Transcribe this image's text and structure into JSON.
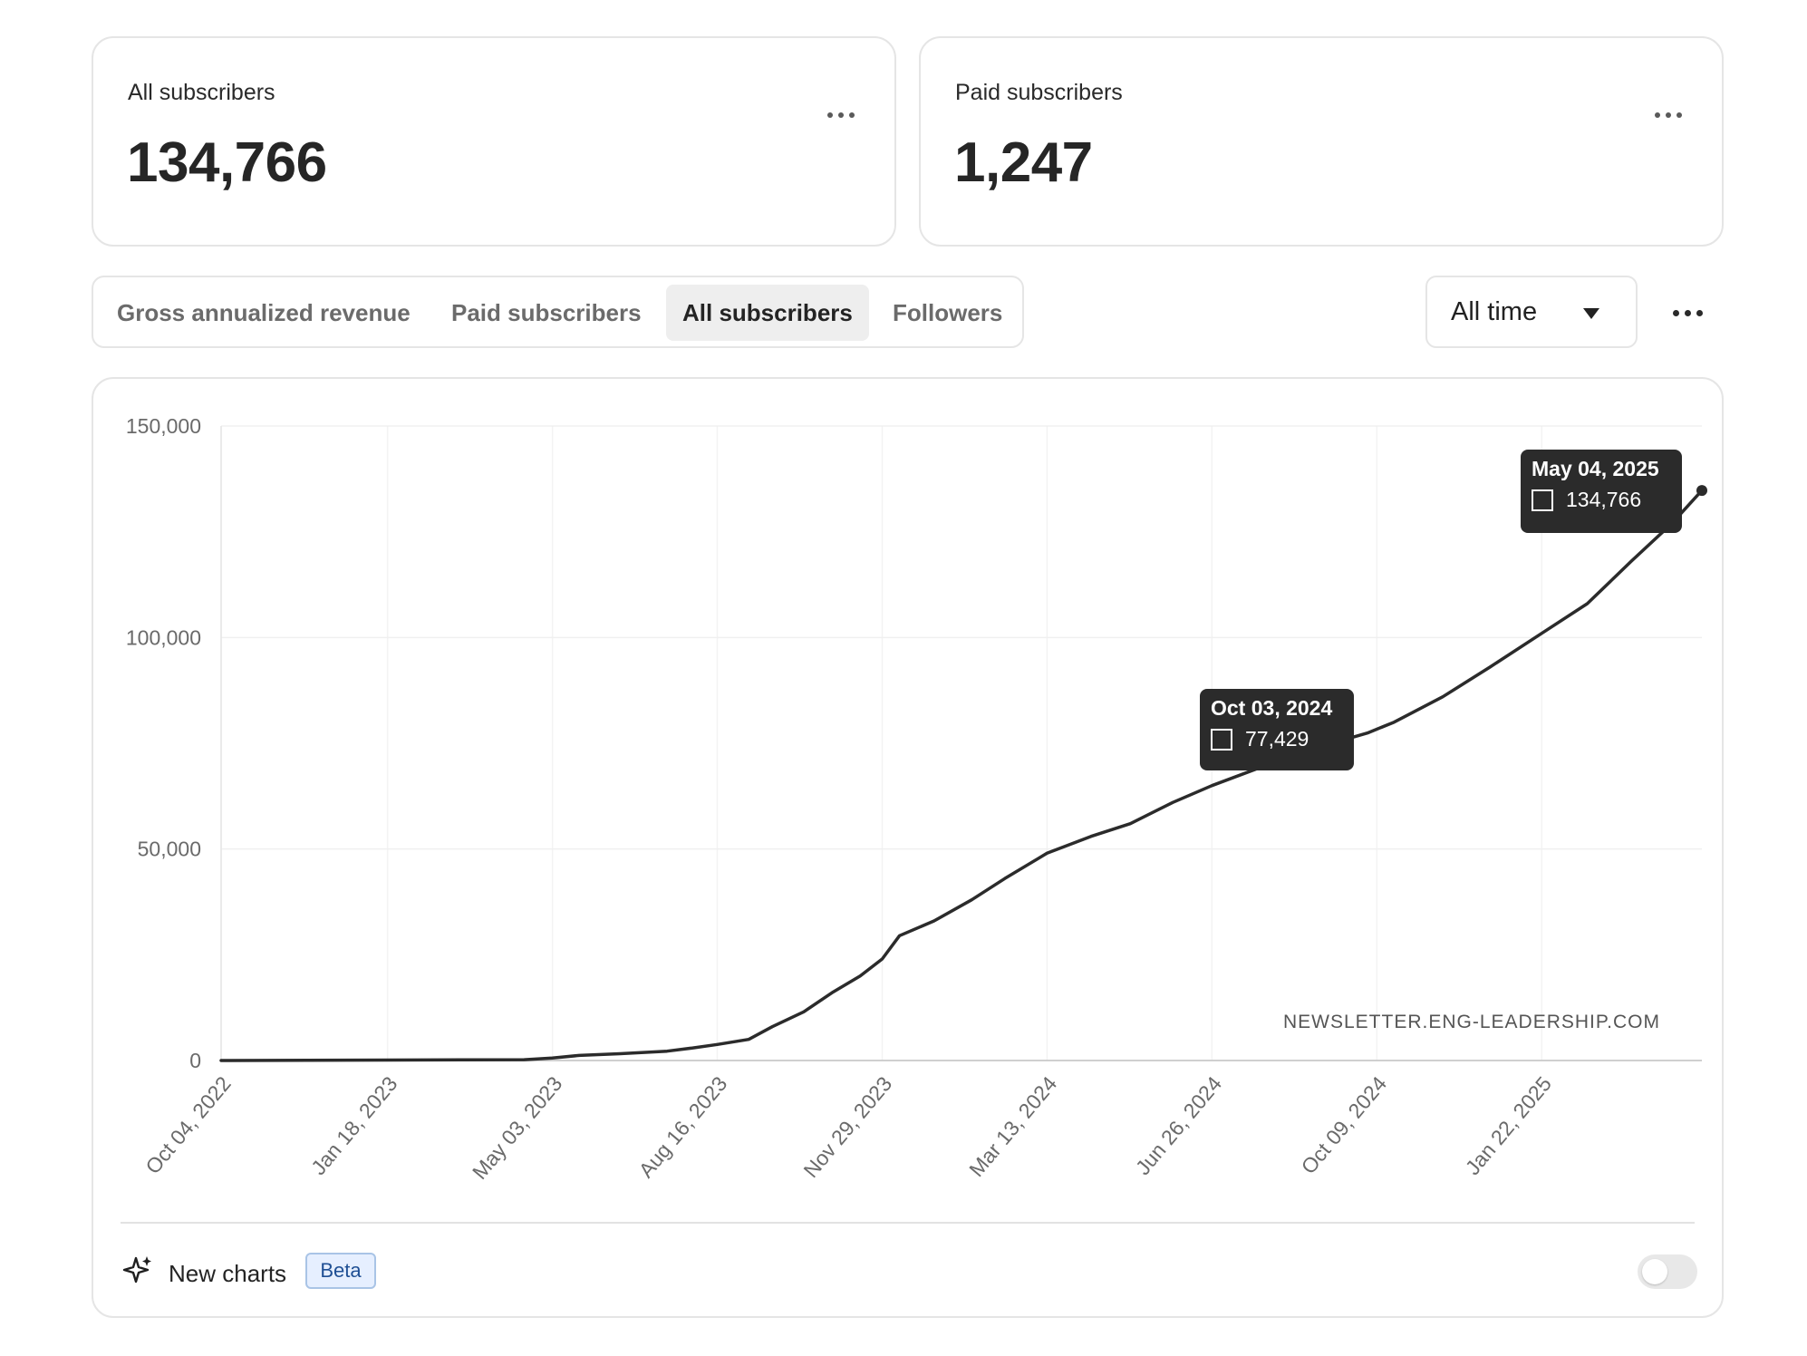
{
  "stats": [
    {
      "label": "All subscribers",
      "value": "134,766"
    },
    {
      "label": "Paid subscribers",
      "value": "1,247"
    }
  ],
  "tabs": [
    {
      "label": "Gross annualized revenue",
      "active": false
    },
    {
      "label": "Paid subscribers",
      "active": false
    },
    {
      "label": "All subscribers",
      "active": true
    },
    {
      "label": "Followers",
      "active": false
    }
  ],
  "range": {
    "selected": "All time"
  },
  "chart_data": {
    "type": "line",
    "title": "",
    "xlabel": "",
    "ylabel": "",
    "ylim": [
      0,
      150000
    ],
    "xlim": [
      "2022-10-04",
      "2025-05-04"
    ],
    "y_ticks": [
      "0",
      "50,000",
      "100,000",
      "150,000"
    ],
    "y_tick_values": [
      0,
      50000,
      100000,
      150000
    ],
    "x_ticks": [
      "Oct 04, 2022",
      "Jan 18, 2023",
      "May 03, 2023",
      "Aug 16, 2023",
      "Nov 29, 2023",
      "Mar 13, 2024",
      "Jun 26, 2024",
      "Oct 09, 2024",
      "Jan 22, 2025"
    ],
    "x_tick_dates": [
      "2022-10-04",
      "2023-01-18",
      "2023-05-03",
      "2023-08-16",
      "2023-11-29",
      "2024-03-13",
      "2024-06-26",
      "2024-10-09",
      "2025-01-22"
    ],
    "grid": true,
    "series": [
      {
        "points": [
          [
            "2022-10-04",
            0
          ],
          [
            "2023-01-18",
            100
          ],
          [
            "2023-04-15",
            200
          ],
          [
            "2023-05-03",
            600
          ],
          [
            "2023-05-20",
            1200
          ],
          [
            "2023-06-15",
            1600
          ],
          [
            "2023-07-15",
            2200
          ],
          [
            "2023-08-01",
            3000
          ],
          [
            "2023-08-16",
            3800
          ],
          [
            "2023-09-05",
            5000
          ],
          [
            "2023-09-20",
            8000
          ],
          [
            "2023-10-10",
            11500
          ],
          [
            "2023-10-28",
            16000
          ],
          [
            "2023-11-15",
            20000
          ],
          [
            "2023-11-29",
            24000
          ],
          [
            "2023-12-10",
            29500
          ],
          [
            "2024-01-01",
            33000
          ],
          [
            "2024-01-25",
            38000
          ],
          [
            "2024-02-15",
            43000
          ],
          [
            "2024-03-13",
            49000
          ],
          [
            "2024-04-10",
            53000
          ],
          [
            "2024-05-05",
            56000
          ],
          [
            "2024-06-01",
            61000
          ],
          [
            "2024-06-26",
            65000
          ],
          [
            "2024-08-01",
            70000
          ],
          [
            "2024-09-01",
            74000
          ],
          [
            "2024-10-03",
            77429
          ],
          [
            "2024-10-20",
            80000
          ],
          [
            "2024-11-20",
            86000
          ],
          [
            "2024-12-20",
            93000
          ],
          [
            "2025-01-22",
            101000
          ],
          [
            "2025-02-20",
            108000
          ],
          [
            "2025-03-20",
            118000
          ],
          [
            "2025-04-15",
            127000
          ],
          [
            "2025-05-04",
            134766
          ]
        ]
      }
    ],
    "tooltips": [
      {
        "date": "Oct 03, 2024",
        "value": "77,429"
      },
      {
        "date": "May 04, 2025",
        "value": "134,766"
      }
    ],
    "watermark": "NEWSLETTER.ENG-LEADERSHIP.COM",
    "line_color": "#2b2b2b"
  },
  "footer": {
    "label": "New charts",
    "badge": "Beta",
    "toggle_on": false
  }
}
